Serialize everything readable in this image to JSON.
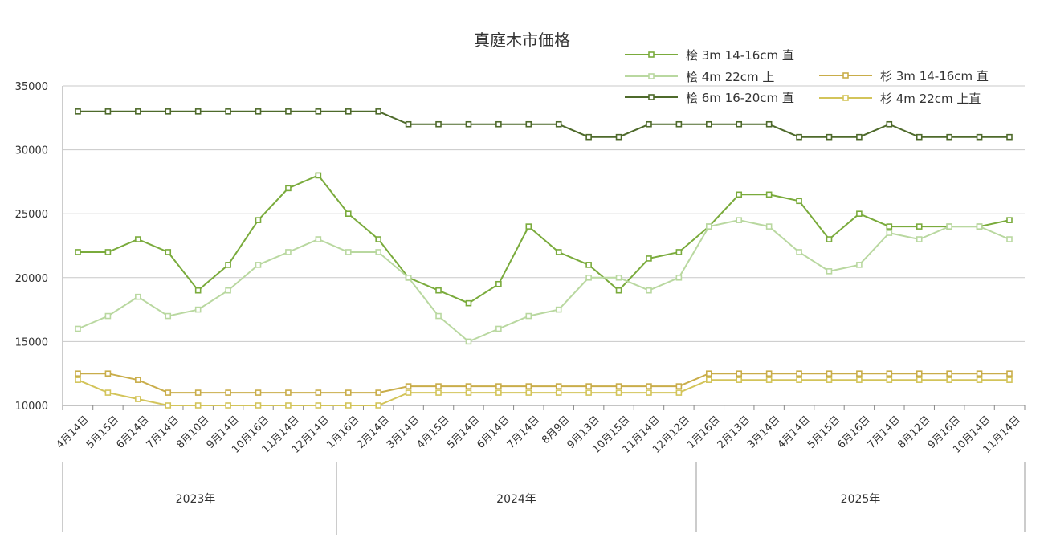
{
  "chart_data": {
    "type": "line",
    "title": "真庭木市価格",
    "ylim": [
      10000,
      35000
    ],
    "yticks": [
      10000,
      15000,
      20000,
      25000,
      30000,
      35000
    ],
    "categories": [
      "4月14日",
      "5月15日",
      "6月14日",
      "7月14日",
      "8月10日",
      "9月14日",
      "10月16日",
      "11月14日",
      "12月14日",
      "1月16日",
      "2月14日",
      "3月14日",
      "4月15日",
      "5月14日",
      "6月14日",
      "7月14日",
      "8月9日",
      "9月13日",
      "10月15日",
      "11月14日",
      "12月12日",
      "1月16日",
      "2月13日",
      "3月14日",
      "4月14日",
      "5月15日",
      "6月16日",
      "7月14日",
      "8月12日",
      "9月16日",
      "10月14日",
      "11月14日"
    ],
    "groups": [
      {
        "label": "2023年",
        "start": 0,
        "end": 8
      },
      {
        "label": "2024年",
        "start": 9,
        "end": 20
      },
      {
        "label": "2025年",
        "start": 21,
        "end": 31
      }
    ],
    "legend_position": "top-right",
    "series": [
      {
        "name": "桧 3m 14-16cm 直",
        "color": "#7aab3c",
        "values": [
          22000,
          22000,
          23000,
          22000,
          19000,
          21000,
          24500,
          27000,
          28000,
          25000,
          23000,
          20000,
          19000,
          18000,
          19500,
          24000,
          22000,
          21000,
          19000,
          21500,
          22000,
          24000,
          26500,
          26500,
          26000,
          23000,
          25000,
          24000,
          24000,
          24000,
          24000,
          24500
        ]
      },
      {
        "name": "桧 4m 22cm 上",
        "color": "#b9d8a0",
        "values": [
          16000,
          17000,
          18500,
          17000,
          17500,
          19000,
          21000,
          22000,
          23000,
          22000,
          22000,
          20000,
          17000,
          15000,
          16000,
          17000,
          17500,
          20000,
          20000,
          19000,
          20000,
          24000,
          24500,
          24000,
          22000,
          20500,
          21000,
          23500,
          23000,
          24000,
          24000,
          23000
        ]
      },
      {
        "name": "桧 6m 16-20cm 直",
        "color": "#4e6a2b",
        "values": [
          33000,
          33000,
          33000,
          33000,
          33000,
          33000,
          33000,
          33000,
          33000,
          33000,
          33000,
          32000,
          32000,
          32000,
          32000,
          32000,
          32000,
          31000,
          31000,
          32000,
          32000,
          32000,
          32000,
          32000,
          31000,
          31000,
          31000,
          32000,
          31000,
          31000,
          31000,
          31000
        ]
      },
      {
        "name": "杉 3m 14-16cm 直",
        "color": "#c9ad4a",
        "values": [
          12500,
          12500,
          12000,
          11000,
          11000,
          11000,
          11000,
          11000,
          11000,
          11000,
          11000,
          11500,
          11500,
          11500,
          11500,
          11500,
          11500,
          11500,
          11500,
          11500,
          11500,
          12500,
          12500,
          12500,
          12500,
          12500,
          12500,
          12500,
          12500,
          12500,
          12500,
          12500
        ]
      },
      {
        "name": "杉 4m 22cm 上直",
        "color": "#d3c45a",
        "values": [
          12000,
          11000,
          10500,
          10000,
          10000,
          10000,
          10000,
          10000,
          10000,
          10000,
          10000,
          11000,
          11000,
          11000,
          11000,
          11000,
          11000,
          11000,
          11000,
          11000,
          11000,
          12000,
          12000,
          12000,
          12000,
          12000,
          12000,
          12000,
          12000,
          12000,
          12000,
          12000
        ]
      }
    ]
  }
}
